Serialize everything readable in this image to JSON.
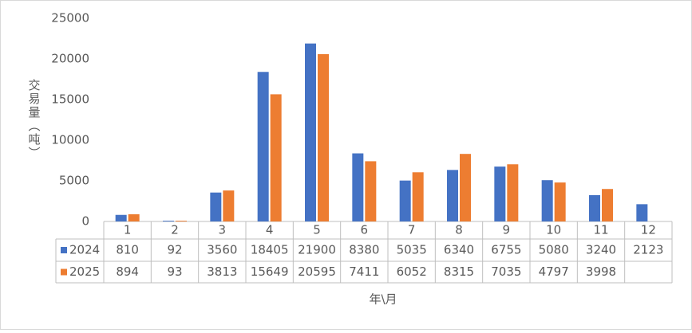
{
  "chart_data": {
    "type": "bar",
    "y_axis_title": "交易量（吨）",
    "x_axis_title": "年\\月",
    "categories": [
      "1",
      "2",
      "3",
      "4",
      "5",
      "6",
      "7",
      "8",
      "9",
      "10",
      "11",
      "12"
    ],
    "series": [
      {
        "name": "2024",
        "color": "#4472c4",
        "values": [
          810,
          92,
          3560,
          18405,
          21900,
          8380,
          5035,
          6340,
          6755,
          5080,
          3240,
          2123
        ]
      },
      {
        "name": "2025",
        "color": "#ed7d31",
        "values": [
          894,
          93,
          3813,
          15649,
          20595,
          7411,
          6052,
          8315,
          7035,
          4797,
          3998,
          null
        ]
      }
    ],
    "ylim": [
      0,
      25000
    ],
    "yticks": [
      0,
      5000,
      10000,
      15000,
      20000,
      25000
    ]
  }
}
